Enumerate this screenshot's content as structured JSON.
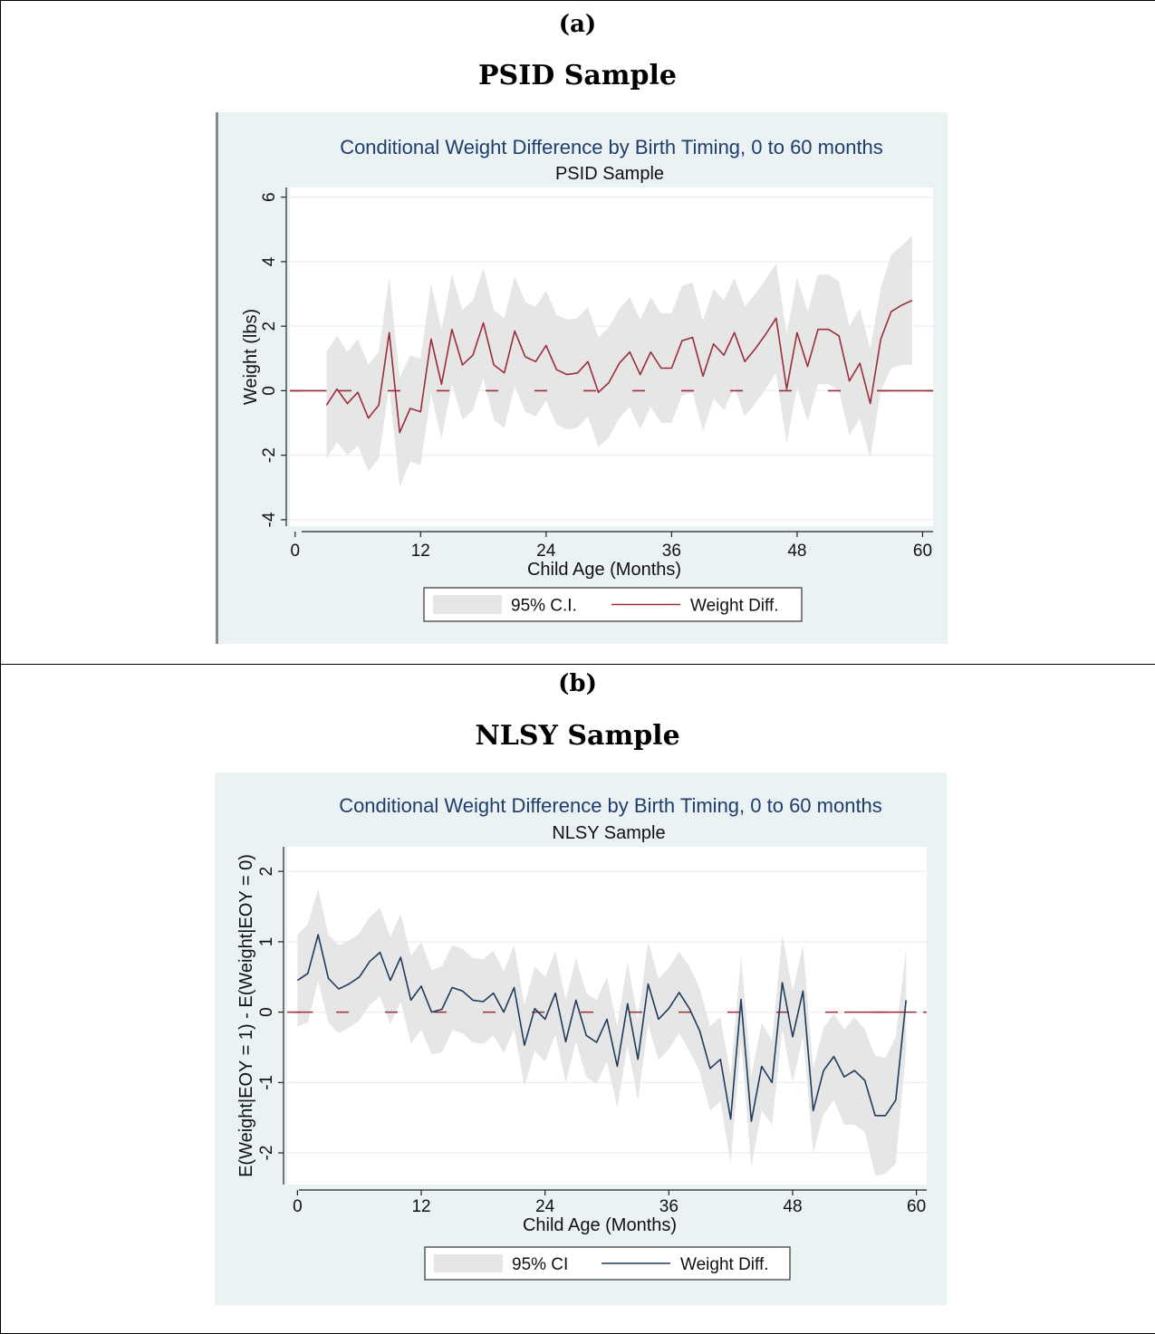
{
  "panels": [
    {
      "letter": "(a)",
      "heading": "PSID Sample"
    },
    {
      "letter": "(b)",
      "heading": "NLSY Sample"
    }
  ],
  "chart_data": [
    {
      "type": "line",
      "title": "Conditional Weight Difference by Birth Timing, 0 to 60 months",
      "subtitle": "PSID Sample",
      "xlabel": "Child Age (Months)",
      "ylabel": "Weight (lbs)",
      "xlim": [
        -0.5,
        61
      ],
      "ylim": [
        -4.2,
        6.3
      ],
      "xticks": [
        0,
        12,
        24,
        36,
        48,
        60
      ],
      "yticks": [
        -4,
        -2,
        0,
        2,
        4,
        6
      ],
      "ytick_rotated": true,
      "grid": true,
      "legend_position": "bottom",
      "reference_line": {
        "y": 0,
        "style": "dashed",
        "solid_x_ranges": [
          [
            -0.5,
            3
          ],
          [
            56,
            61
          ]
        ]
      },
      "colors": {
        "line": "#9b2d3a",
        "band": "#e6e6e6",
        "background": "#eaf2f3",
        "plot_background": "#ffffff",
        "title": "#1f3d6b"
      },
      "legend": [
        {
          "label": "95% C.I.",
          "kind": "band"
        },
        {
          "label": "Weight Diff.",
          "kind": "line"
        }
      ],
      "x": [
        3,
        4,
        5,
        6,
        7,
        8,
        9,
        10,
        11,
        12,
        13,
        14,
        15,
        16,
        17,
        18,
        19,
        20,
        21,
        22,
        23,
        24,
        25,
        26,
        27,
        28,
        29,
        30,
        31,
        32,
        33,
        34,
        35,
        36,
        37,
        38,
        39,
        40,
        41,
        42,
        43,
        44,
        45,
        46,
        47,
        48,
        49,
        50,
        51,
        52,
        53,
        54,
        55,
        56,
        57,
        58,
        59
      ],
      "series": [
        {
          "name": "Weight Diff.",
          "values": [
            -0.45,
            0.05,
            -0.4,
            -0.05,
            -0.85,
            -0.45,
            1.8,
            -1.3,
            -0.55,
            -0.65,
            1.6,
            0.2,
            1.9,
            0.8,
            1.1,
            2.1,
            0.8,
            0.55,
            1.85,
            1.05,
            0.9,
            1.4,
            0.65,
            0.5,
            0.55,
            0.9,
            -0.05,
            0.25,
            0.85,
            1.2,
            0.5,
            1.2,
            0.7,
            0.7,
            1.55,
            1.65,
            0.45,
            1.45,
            1.1,
            1.8,
            0.9,
            1.3,
            1.75,
            2.25,
            0.05,
            1.8,
            0.75,
            1.9,
            1.9,
            1.7,
            0.3,
            0.85,
            -0.4,
            1.6,
            2.45,
            2.65,
            2.8
          ],
          "lower": [
            -2.1,
            -1.6,
            -2.0,
            -1.7,
            -2.5,
            -2.1,
            0.1,
            -3.0,
            -2.2,
            -2.3,
            -0.1,
            -1.5,
            0.2,
            -0.9,
            -0.6,
            0.4,
            -0.9,
            -1.15,
            0.15,
            -0.65,
            -0.8,
            -0.3,
            -1.05,
            -1.2,
            -1.15,
            -0.8,
            -1.75,
            -1.45,
            -0.85,
            -0.5,
            -1.2,
            -0.5,
            -1.0,
            -1.0,
            -0.15,
            -0.05,
            -1.25,
            -0.25,
            -0.6,
            0.1,
            -0.8,
            -0.4,
            0.05,
            0.55,
            -1.65,
            0.1,
            -0.95,
            0.2,
            0.2,
            0.0,
            -1.4,
            -0.85,
            -2.1,
            0.0,
            0.7,
            0.8,
            0.8
          ],
          "upper": [
            1.2,
            1.7,
            1.2,
            1.6,
            0.8,
            1.2,
            3.5,
            0.4,
            1.1,
            1.0,
            3.3,
            1.9,
            3.6,
            2.5,
            2.8,
            3.8,
            2.5,
            2.25,
            3.55,
            2.75,
            2.6,
            3.1,
            2.35,
            2.2,
            2.25,
            2.6,
            1.65,
            1.95,
            2.55,
            2.9,
            2.2,
            2.9,
            2.4,
            2.4,
            3.25,
            3.35,
            2.15,
            3.15,
            2.8,
            3.5,
            2.6,
            3.0,
            3.45,
            3.95,
            1.75,
            3.5,
            2.45,
            3.6,
            3.6,
            3.4,
            2.0,
            2.55,
            1.3,
            3.2,
            4.2,
            4.5,
            4.8
          ]
        }
      ]
    },
    {
      "type": "line",
      "title": "Conditional Weight Difference by Birth Timing, 0 to 60 months",
      "subtitle": "NLSY Sample",
      "xlabel": "Child Age (Months)",
      "ylabel": "E(Weight|EOY = 1) - E(Weight|EOY = 0)",
      "xlim": [
        -1,
        61
      ],
      "ylim": [
        -2.45,
        2.35
      ],
      "xticks": [
        0,
        12,
        24,
        36,
        48,
        60
      ],
      "yticks": [
        -2,
        -1,
        0,
        1,
        2
      ],
      "ytick_rotated": true,
      "grid": true,
      "legend_position": "bottom",
      "reference_line": {
        "y": 0,
        "style": "dashed",
        "solid_x_ranges": [
          [
            -0.2,
            1.5
          ],
          [
            53,
            60
          ]
        ]
      },
      "colors": {
        "line": "#1f3b5c",
        "band": "#e6e6e6",
        "background": "#eaf2f3",
        "plot_background": "#ffffff",
        "title": "#1f3d6b",
        "reference": "#9b2d3a"
      },
      "legend": [
        {
          "label": "95% CI",
          "kind": "band"
        },
        {
          "label": "Weight Diff.",
          "kind": "line"
        }
      ],
      "x": [
        0,
        1,
        2,
        3,
        4,
        5,
        6,
        7,
        8,
        9,
        10,
        11,
        12,
        13,
        14,
        15,
        16,
        17,
        18,
        19,
        20,
        21,
        22,
        23,
        24,
        25,
        26,
        27,
        28,
        29,
        30,
        31,
        32,
        33,
        34,
        35,
        36,
        37,
        38,
        39,
        40,
        41,
        42,
        43,
        44,
        45,
        46,
        47,
        48,
        49,
        50,
        51,
        52,
        53,
        54,
        55,
        56,
        57,
        58,
        59
      ],
      "series": [
        {
          "name": "Weight Diff.",
          "values": [
            0.45,
            0.55,
            1.1,
            0.48,
            0.33,
            0.4,
            0.5,
            0.72,
            0.85,
            0.45,
            0.78,
            0.17,
            0.37,
            0.0,
            0.04,
            0.35,
            0.3,
            0.17,
            0.15,
            0.27,
            0.0,
            0.35,
            -0.47,
            0.05,
            -0.1,
            0.27,
            -0.42,
            0.17,
            -0.33,
            -0.43,
            -0.1,
            -0.77,
            0.12,
            -0.67,
            0.4,
            -0.1,
            0.05,
            0.28,
            0.05,
            -0.27,
            -0.8,
            -0.67,
            -1.52,
            0.18,
            -1.55,
            -0.77,
            -1.0,
            0.42,
            -0.35,
            0.3,
            -1.4,
            -0.83,
            -0.63,
            -0.92,
            -0.83,
            -0.97,
            -1.47,
            -1.47,
            -1.25,
            0.17
          ],
          "lower": [
            -0.2,
            -0.15,
            0.45,
            -0.15,
            -0.3,
            -0.22,
            -0.12,
            0.1,
            0.22,
            -0.17,
            0.15,
            -0.45,
            -0.25,
            -0.6,
            -0.57,
            -0.26,
            -0.3,
            -0.43,
            -0.45,
            -0.33,
            -0.58,
            -0.25,
            -1.05,
            -0.55,
            -0.7,
            -0.32,
            -1.0,
            -0.42,
            -0.92,
            -1.02,
            -0.7,
            -1.35,
            -0.47,
            -1.25,
            -0.18,
            -0.68,
            -0.53,
            -0.3,
            -0.55,
            -0.85,
            -1.4,
            -1.27,
            -2.15,
            -0.42,
            -2.2,
            -1.4,
            -1.6,
            -0.25,
            -1.0,
            -0.35,
            -2.0,
            -1.45,
            -1.25,
            -1.6,
            -1.6,
            -1.7,
            -2.32,
            -2.3,
            -2.15,
            -0.55
          ],
          "upper": [
            1.1,
            1.25,
            1.75,
            1.1,
            0.95,
            1.02,
            1.12,
            1.35,
            1.48,
            1.07,
            1.4,
            0.8,
            1.0,
            0.6,
            0.65,
            0.95,
            0.9,
            0.77,
            0.75,
            0.87,
            0.58,
            0.95,
            0.1,
            0.65,
            0.5,
            0.87,
            0.17,
            0.77,
            0.27,
            0.17,
            0.5,
            -0.2,
            0.72,
            -0.1,
            1.0,
            0.48,
            0.63,
            0.86,
            0.65,
            0.33,
            -0.2,
            -0.07,
            -0.9,
            0.8,
            -0.9,
            -0.15,
            -0.4,
            1.1,
            0.3,
            0.95,
            -0.8,
            -0.22,
            -0.02,
            -0.25,
            -0.07,
            -0.25,
            -0.62,
            -0.65,
            -0.35,
            0.9
          ]
        }
      ]
    }
  ]
}
